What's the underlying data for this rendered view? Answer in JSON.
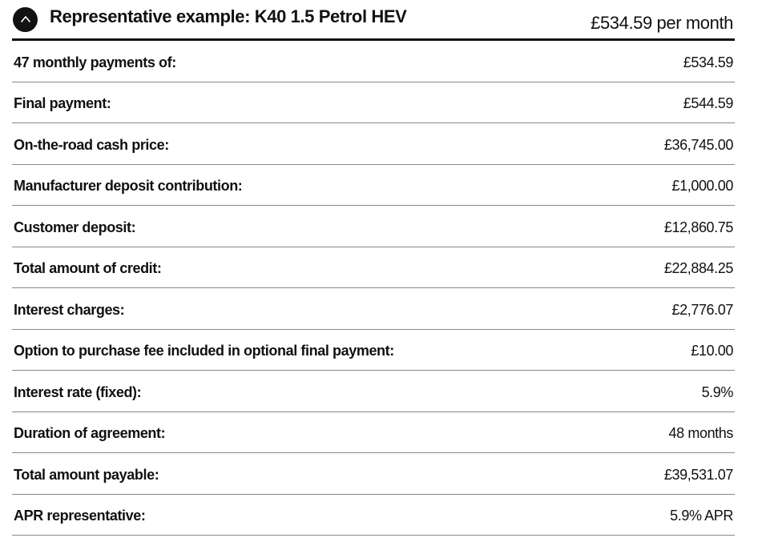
{
  "header": {
    "title": "Representative example: K40 1.5 Petrol HEV",
    "price": "£534.59 per month",
    "toggle_icon": "chevron-up-icon"
  },
  "rows": [
    {
      "label": "47 monthly payments of:",
      "value": "£534.59"
    },
    {
      "label": "Final payment:",
      "value": "£544.59"
    },
    {
      "label": "On-the-road cash price:",
      "value": "£36,745.00"
    },
    {
      "label": "Manufacturer deposit contribution:",
      "value": "£1,000.00"
    },
    {
      "label": "Customer deposit:",
      "value": "£12,860.75"
    },
    {
      "label": "Total amount of credit:",
      "value": "£22,884.25"
    },
    {
      "label": "Interest charges:",
      "value": "£2,776.07"
    },
    {
      "label": "Option to purchase fee included in optional final payment:",
      "value": "£10.00"
    },
    {
      "label": "Interest rate (fixed):",
      "value": "5.9%"
    },
    {
      "label": "Duration of agreement:",
      "value": "48 months"
    },
    {
      "label": "Total amount payable:",
      "value": "£39,531.07"
    },
    {
      "label": "APR representative:",
      "value": "5.9% APR"
    }
  ]
}
